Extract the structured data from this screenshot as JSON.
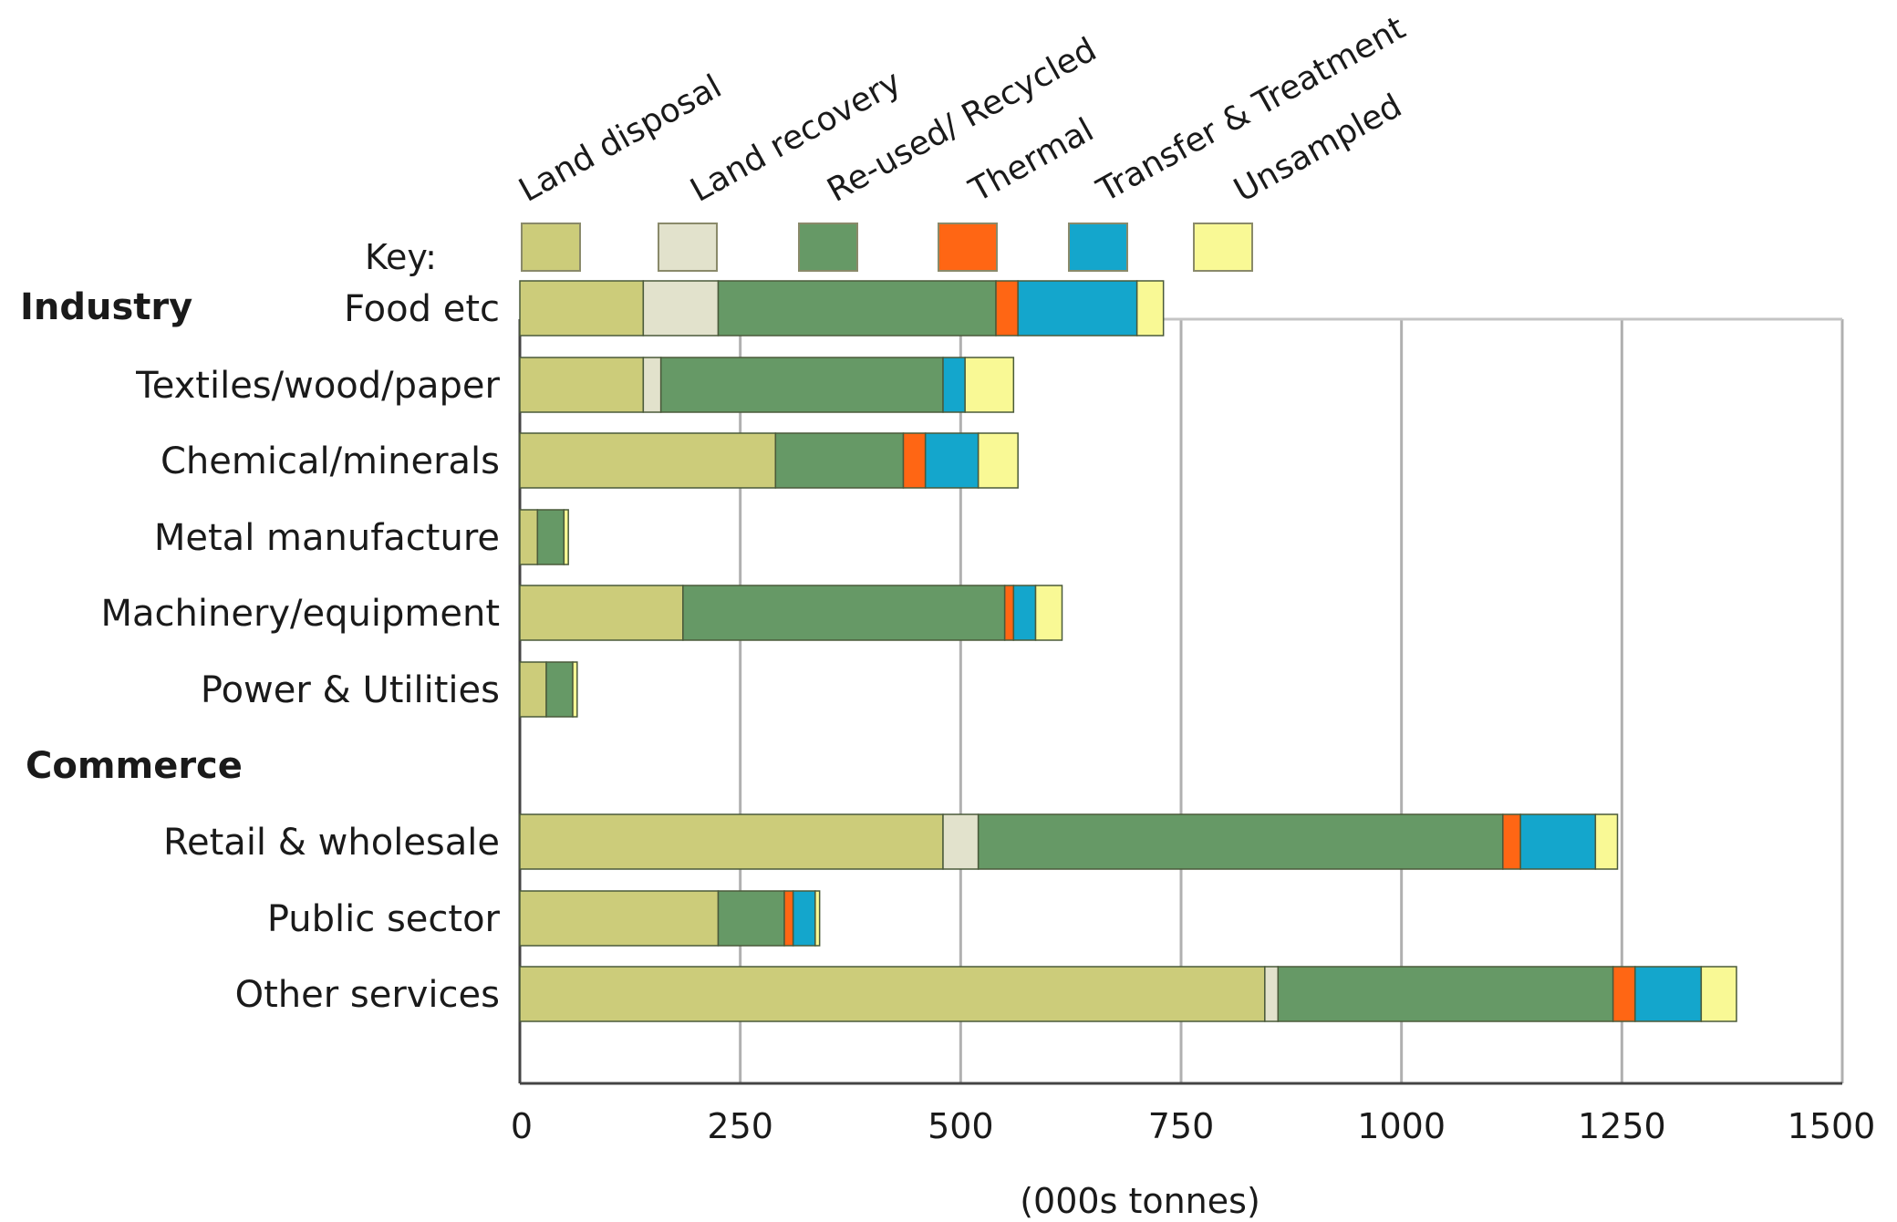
{
  "chart_data": {
    "type": "bar",
    "orientation": "horizontal",
    "stacked": true,
    "key_label": "Key:",
    "xlabel": "(000s tonnes)",
    "xlim": [
      0,
      1500
    ],
    "xticks": [
      "0",
      "250",
      "500",
      "750",
      "1000",
      "1250",
      "1500"
    ],
    "grid": true,
    "legend_position": "top",
    "series": [
      {
        "name": "Land disposal",
        "color": "#cccc7a"
      },
      {
        "name": "Land recovery",
        "color": "#e2e2cc"
      },
      {
        "name": "Re-used/ Recycled",
        "color": "#669966"
      },
      {
        "name": "Thermal",
        "color": "#ff6614"
      },
      {
        "name": "Transfer & Treatment",
        "color": "#14a6cc"
      },
      {
        "name": "Unsampled",
        "color": "#f9f995"
      }
    ],
    "groups": [
      {
        "name": "Industry",
        "categories": [
          {
            "name": "Food etc",
            "values": [
              140,
              85,
              315,
              25,
              135,
              30
            ]
          },
          {
            "name": "Textiles/wood/paper",
            "values": [
              140,
              20,
              320,
              0,
              25,
              55
            ]
          },
          {
            "name": "Chemical/minerals",
            "values": [
              290,
              0,
              145,
              25,
              60,
              45
            ]
          },
          {
            "name": "Metal manufacture",
            "values": [
              20,
              0,
              30,
              0,
              0,
              5
            ]
          },
          {
            "name": "Machinery/equipment",
            "values": [
              185,
              0,
              365,
              10,
              25,
              30
            ]
          },
          {
            "name": "Power & Utilities",
            "values": [
              30,
              0,
              30,
              0,
              0,
              5
            ]
          }
        ]
      },
      {
        "name": "Commerce",
        "categories": [
          {
            "name": "Retail & wholesale",
            "values": [
              480,
              40,
              595,
              20,
              85,
              25
            ]
          },
          {
            "name": "Public sector",
            "values": [
              225,
              0,
              75,
              10,
              25,
              5
            ]
          },
          {
            "name": "Other services",
            "values": [
              845,
              15,
              380,
              25,
              75,
              40
            ]
          }
        ]
      }
    ]
  }
}
